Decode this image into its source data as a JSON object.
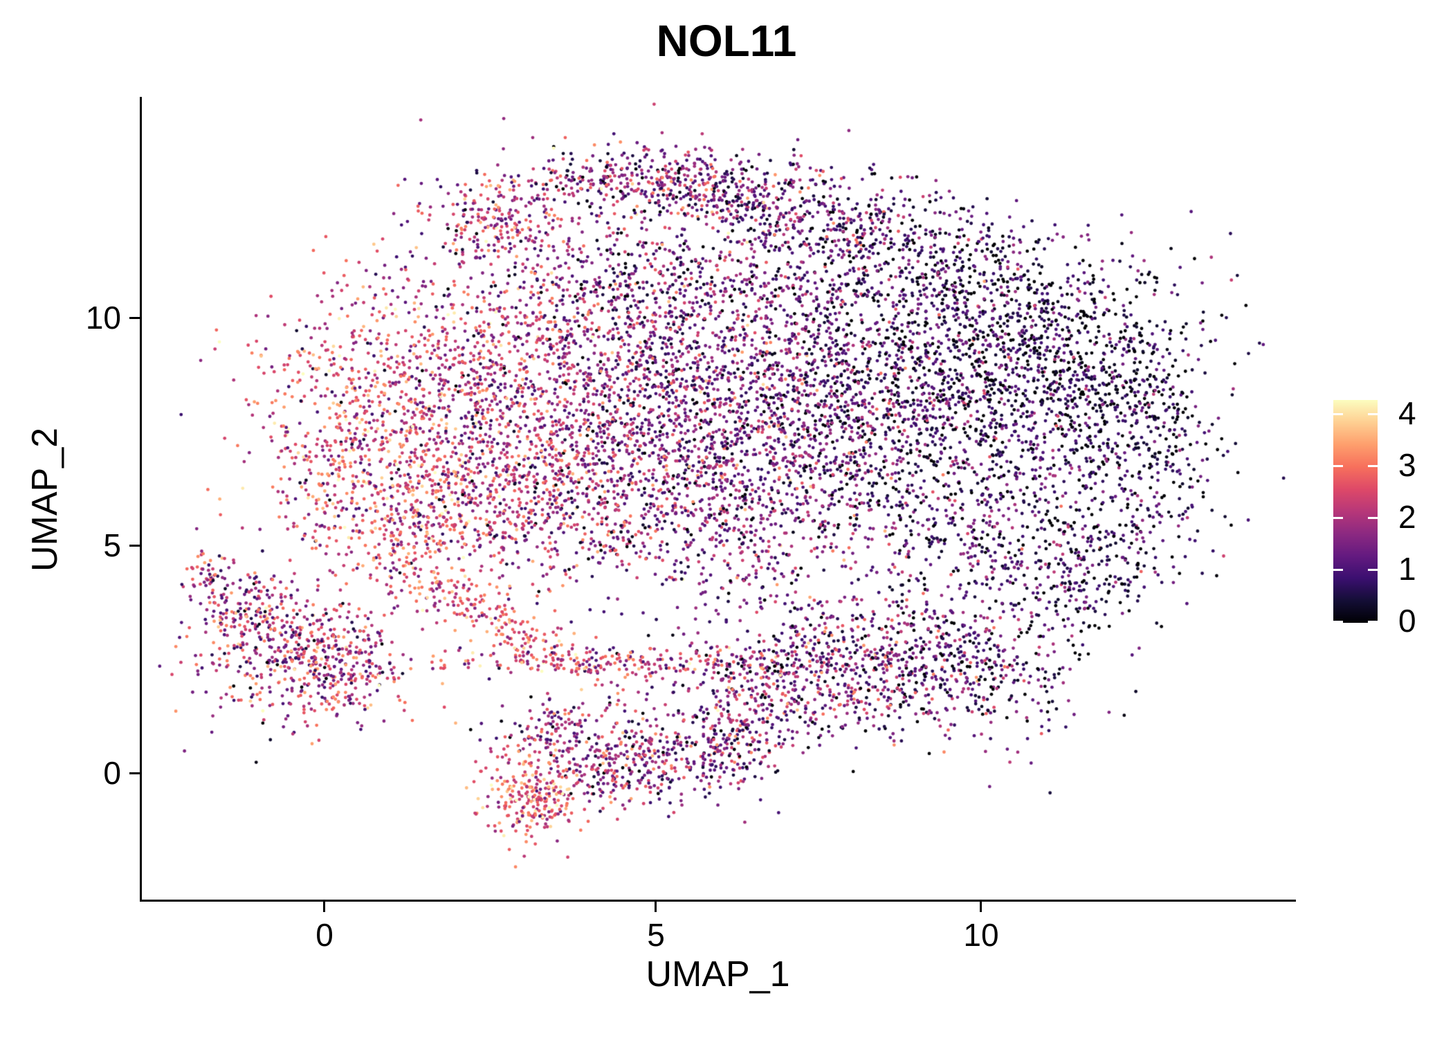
{
  "title": "NOL11",
  "axes": {
    "x": {
      "label": "UMAP_1",
      "ticks": [
        "0",
        "5",
        "10"
      ]
    },
    "y": {
      "label": "UMAP_2",
      "ticks": [
        "0",
        "5",
        "10"
      ]
    }
  },
  "colorbar": {
    "ticks": [
      "0",
      "1",
      "2",
      "3",
      "4"
    ],
    "colormap": "magma",
    "stops": [
      "#000004",
      "#140E36",
      "#3B0F70",
      "#641A80",
      "#8C2981",
      "#B73779",
      "#DE4968",
      "#F7705C",
      "#FE9F6D",
      "#FECF92",
      "#FCFDBF"
    ]
  },
  "chart_data": {
    "type": "scatter",
    "title": "NOL11",
    "xlabel": "UMAP_1",
    "ylabel": "UMAP_2",
    "xlim": [
      -2.8,
      14.8
    ],
    "ylim": [
      -2.8,
      14.85
    ],
    "x_ticks": [
      0,
      5,
      10
    ],
    "y_ticks": [
      0,
      5,
      10
    ],
    "grid": false,
    "legend_position": "right",
    "color_scale": {
      "min": 0,
      "max": 4.3,
      "palette": "magma",
      "legend_ticks": [
        0,
        1,
        2,
        3,
        4
      ]
    },
    "point_radius_px": 2.4,
    "seed": 20240717,
    "cluster_fields": [
      "n",
      "cx",
      "cy",
      "sx",
      "sy",
      "rot_deg",
      "expr_mean",
      "expr_sd"
    ],
    "clusters": [
      {
        "name": "main-left-edge",
        "n": 550,
        "cx": 0.6,
        "cy": 7.6,
        "sx": 0.9,
        "sy": 1.5,
        "rot_deg": 0,
        "expr_mean": 2.6,
        "expr_sd": 0.85
      },
      {
        "name": "main-left",
        "n": 700,
        "cx": 2.1,
        "cy": 8.3,
        "sx": 1.1,
        "sy": 1.6,
        "rot_deg": 0,
        "expr_mean": 2.25,
        "expr_sd": 0.85
      },
      {
        "name": "main-left-mid",
        "n": 750,
        "cx": 3.8,
        "cy": 8.9,
        "sx": 1.3,
        "sy": 1.7,
        "rot_deg": 0,
        "expr_mean": 1.85,
        "expr_sd": 0.85
      },
      {
        "name": "main-mid",
        "n": 750,
        "cx": 5.4,
        "cy": 8.2,
        "sx": 1.3,
        "sy": 1.8,
        "rot_deg": 0,
        "expr_mean": 1.55,
        "expr_sd": 0.85
      },
      {
        "name": "main-mid-right",
        "n": 800,
        "cx": 7.0,
        "cy": 8.7,
        "sx": 1.3,
        "sy": 1.5,
        "rot_deg": 0,
        "expr_mean": 1.2,
        "expr_sd": 0.8
      },
      {
        "name": "main-right-dense",
        "n": 800,
        "cx": 8.6,
        "cy": 8.3,
        "sx": 1.2,
        "sy": 1.5,
        "rot_deg": 0,
        "expr_mean": 0.95,
        "expr_sd": 0.8
      },
      {
        "name": "main-right-dark",
        "n": 650,
        "cx": 10.1,
        "cy": 8.9,
        "sx": 1.1,
        "sy": 1.3,
        "rot_deg": 0,
        "expr_mean": 0.6,
        "expr_sd": 0.7
      },
      {
        "name": "main-far-right-dark",
        "n": 480,
        "cx": 11.6,
        "cy": 8.9,
        "sx": 0.9,
        "sy": 1.1,
        "rot_deg": 0,
        "expr_mean": 0.45,
        "expr_sd": 0.65
      },
      {
        "name": "right-edge-ring",
        "n": 280,
        "cx": 12.6,
        "cy": 7.2,
        "sx": 0.55,
        "sy": 1.3,
        "rot_deg": 0,
        "expr_mean": 0.6,
        "expr_sd": 0.7
      },
      {
        "name": "ring-bottom-right",
        "n": 360,
        "cx": 10.4,
        "cy": 5.6,
        "sx": 1.1,
        "sy": 0.9,
        "rot_deg": 0,
        "expr_mean": 0.9,
        "expr_sd": 0.8
      },
      {
        "name": "main-bottom-mid",
        "n": 480,
        "cx": 6.2,
        "cy": 5.7,
        "sx": 1.4,
        "sy": 0.9,
        "rot_deg": 0,
        "expr_mean": 1.45,
        "expr_sd": 0.85
      },
      {
        "name": "main-bottom-left",
        "n": 430,
        "cx": 3.4,
        "cy": 6.1,
        "sx": 1.2,
        "sy": 0.9,
        "rot_deg": 0,
        "expr_mean": 2.05,
        "expr_sd": 0.85
      },
      {
        "name": "main-lowleft-tip",
        "n": 260,
        "cx": 1.5,
        "cy": 5.4,
        "sx": 0.8,
        "sy": 0.7,
        "rot_deg": 0,
        "expr_mean": 2.5,
        "expr_sd": 0.85
      },
      {
        "name": "top-arc-apex",
        "n": 330,
        "cx": 4.7,
        "cy": 13.0,
        "sx": 1.1,
        "sy": 0.35,
        "rot_deg": 0,
        "expr_mean": 1.7,
        "expr_sd": 0.95
      },
      {
        "name": "top-arc-right",
        "n": 300,
        "cx": 6.4,
        "cy": 12.7,
        "sx": 0.9,
        "sy": 0.45,
        "rot_deg": 0,
        "expr_mean": 1.25,
        "expr_sd": 0.9
      },
      {
        "name": "top-arc-far-right",
        "n": 260,
        "cx": 8.0,
        "cy": 12.0,
        "sx": 0.9,
        "sy": 0.5,
        "rot_deg": 0,
        "expr_mean": 0.95,
        "expr_sd": 0.85
      },
      {
        "name": "top-left-arm",
        "n": 170,
        "cx": 2.6,
        "cy": 12.15,
        "sx": 0.55,
        "sy": 0.4,
        "rot_deg": 0,
        "expr_mean": 2.2,
        "expr_sd": 0.8
      },
      {
        "name": "under-arc-fill",
        "n": 300,
        "cx": 5.2,
        "cy": 10.9,
        "sx": 1.8,
        "sy": 0.6,
        "rot_deg": 0,
        "expr_mean": 1.3,
        "expr_sd": 0.9
      },
      {
        "name": "top-right-fill",
        "n": 300,
        "cx": 9.6,
        "cy": 11.0,
        "sx": 1.2,
        "sy": 0.65,
        "rot_deg": 0,
        "expr_mean": 0.75,
        "expr_sd": 0.75
      },
      {
        "name": "lower-right-lobe",
        "n": 620,
        "cx": 8.3,
        "cy": 2.6,
        "sx": 1.3,
        "sy": 0.9,
        "rot_deg": 0,
        "expr_mean": 1.3,
        "expr_sd": 0.9
      },
      {
        "name": "lower-lobe-left",
        "n": 280,
        "cx": 6.9,
        "cy": 1.9,
        "sx": 0.8,
        "sy": 0.65,
        "rot_deg": 0,
        "expr_mean": 1.7,
        "expr_sd": 0.95
      },
      {
        "name": "lower-lobe-right",
        "n": 300,
        "cx": 9.8,
        "cy": 2.3,
        "sx": 0.85,
        "sy": 0.8,
        "rot_deg": 0,
        "expr_mean": 1.0,
        "expr_sd": 0.85
      },
      {
        "name": "right-bridge",
        "n": 240,
        "cx": 11.3,
        "cy": 4.4,
        "sx": 0.8,
        "sy": 0.85,
        "rot_deg": 0,
        "expr_mean": 0.8,
        "expr_sd": 0.8
      },
      {
        "name": "left-cluster-core",
        "n": 430,
        "cx": -0.6,
        "cy": 2.7,
        "sx": 0.75,
        "sy": 0.78,
        "rot_deg": 0,
        "expr_mean": 2.0,
        "expr_sd": 0.95
      },
      {
        "name": "left-cluster-right",
        "n": 180,
        "cx": 0.35,
        "cy": 2.3,
        "sx": 0.5,
        "sy": 0.55,
        "rot_deg": 0,
        "expr_mean": 2.2,
        "expr_sd": 0.9
      },
      {
        "name": "left-cluster-upper",
        "n": 100,
        "cx": -1.2,
        "cy": 3.6,
        "sx": 0.4,
        "sy": 0.45,
        "rot_deg": 0,
        "expr_mean": 1.8,
        "expr_sd": 0.9
      },
      {
        "name": "left-cluster-arm-tip",
        "n": 45,
        "cx": -1.72,
        "cy": 4.35,
        "sx": 0.18,
        "sy": 0.33,
        "rot_deg": 0,
        "expr_mean": 2.0,
        "expr_sd": 0.8
      },
      {
        "name": "diagonal-stream",
        "n": 260,
        "cx": 2.6,
        "cy": 3.4,
        "sx": 1.4,
        "sy": 0.25,
        "rot_deg": -38,
        "expr_mean": 2.7,
        "expr_sd": 0.7
      },
      {
        "name": "horizontal-streak",
        "n": 210,
        "cx": 4.1,
        "cy": 2.45,
        "sx": 1.7,
        "sy": 0.18,
        "rot_deg": 0,
        "expr_mean": 2.3,
        "expr_sd": 0.8
      },
      {
        "name": "bottom-orange-blob",
        "n": 240,
        "cx": 3.15,
        "cy": -0.55,
        "sx": 0.42,
        "sy": 0.45,
        "rot_deg": 0,
        "expr_mean": 2.85,
        "expr_sd": 0.8
      },
      {
        "name": "bottom-mid",
        "n": 230,
        "cx": 4.3,
        "cy": 0.1,
        "sx": 0.7,
        "sy": 0.5,
        "rot_deg": 0,
        "expr_mean": 1.8,
        "expr_sd": 0.9
      },
      {
        "name": "bottom-right",
        "n": 220,
        "cx": 5.5,
        "cy": 0.3,
        "sx": 0.7,
        "sy": 0.5,
        "rot_deg": 0,
        "expr_mean": 1.5,
        "expr_sd": 0.9
      },
      {
        "name": "bottom-upper-link",
        "n": 130,
        "cx": 3.6,
        "cy": 0.9,
        "sx": 0.5,
        "sy": 0.4,
        "rot_deg": 0,
        "expr_mean": 1.7,
        "expr_sd": 0.9
      },
      {
        "name": "bottom-far-right",
        "n": 90,
        "cx": 6.3,
        "cy": 0.9,
        "sx": 0.4,
        "sy": 0.4,
        "rot_deg": 0,
        "expr_mean": 1.6,
        "expr_sd": 0.9
      },
      {
        "name": "sparse-background",
        "n": 260,
        "cx": 6.0,
        "cy": 8.0,
        "sx": 3.4,
        "sy": 2.6,
        "rot_deg": 0,
        "expr_mean": 1.2,
        "expr_sd": 0.9
      }
    ]
  }
}
